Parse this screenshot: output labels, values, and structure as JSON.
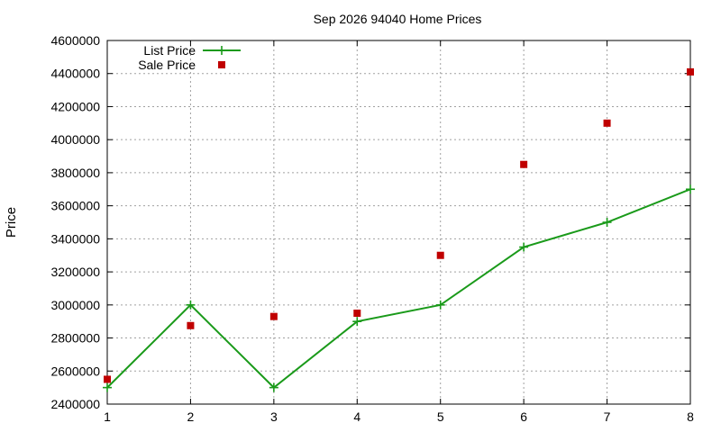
{
  "chart_data": {
    "type": "line",
    "title": "Sep 2026 94040 Home Prices",
    "xlabel": "",
    "ylabel": "Price",
    "x": [
      1,
      2,
      3,
      4,
      5,
      6,
      7,
      8
    ],
    "xlim": [
      1,
      8
    ],
    "ylim": [
      2400000,
      4600000
    ],
    "yticks": [
      2400000,
      2600000,
      2800000,
      3000000,
      3200000,
      3400000,
      3600000,
      3800000,
      4000000,
      4200000,
      4400000,
      4600000
    ],
    "xticks": [
      1,
      2,
      3,
      4,
      5,
      6,
      7,
      8
    ],
    "grid": true,
    "legend_position": "top-left",
    "series": [
      {
        "name": "List Price",
        "style": "line-points",
        "color": "#1a9a1a",
        "values": [
          2500000,
          3000000,
          2500000,
          2900000,
          3000000,
          3350000,
          3500000,
          3700000
        ]
      },
      {
        "name": "Sale Price",
        "style": "points",
        "color": "#c00000",
        "values": [
          2550000,
          2875000,
          2930000,
          2950000,
          3300000,
          3850000,
          4100000,
          4410000
        ]
      }
    ]
  }
}
